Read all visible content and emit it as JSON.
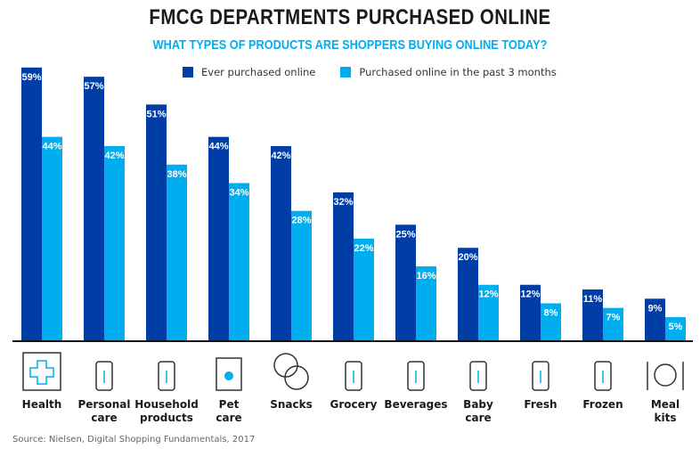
{
  "title": "FMCG DEPARTMENTS PURCHASED ONLINE",
  "subtitle": "WHAT TYPES OF PRODUCTS ARE SHOPPERS BUYING ONLINE TODAY?",
  "source": "Source: Nielsen, Digital Shopping Fundamentals, 2017",
  "chart_data": {
    "type": "bar",
    "title": "FMCG DEPARTMENTS PURCHASED ONLINE",
    "subtitle": "WHAT TYPES OF PRODUCTS ARE SHOPPERS BUYING ONLINE TODAY?",
    "categories": [
      "Health",
      "Personal care",
      "Household products",
      "Pet care",
      "Snacks",
      "Grocery",
      "Beverages",
      "Baby care",
      "Fresh",
      "Frozen",
      "Meal kits"
    ],
    "category_lines": [
      [
        "Health"
      ],
      [
        "Personal",
        "care"
      ],
      [
        "Household",
        "products"
      ],
      [
        "Pet",
        "care"
      ],
      [
        "Snacks"
      ],
      [
        "Grocery"
      ],
      [
        "Beverages"
      ],
      [
        "Baby",
        "care"
      ],
      [
        "Fresh"
      ],
      [
        "Frozen"
      ],
      [
        "Meal",
        "kits"
      ]
    ],
    "icons": [
      "health-cross-icon",
      "lipstick-icon",
      "detergent-bottle-icon",
      "pet-food-icon",
      "cookies-icon",
      "vegetables-icon",
      "soda-can-icon",
      "baby-bottle-icon",
      "fruit-icon",
      "frozen-bag-icon",
      "plate-cutlery-icon"
    ],
    "series": [
      {
        "name": "Ever purchased online",
        "color": "#003da5",
        "values": [
          59,
          57,
          51,
          44,
          42,
          32,
          25,
          20,
          12,
          11,
          9
        ]
      },
      {
        "name": "Purchased online in the past 3 months",
        "color": "#00aeef",
        "values": [
          44,
          42,
          38,
          34,
          28,
          22,
          16,
          12,
          8,
          7,
          5
        ]
      }
    ],
    "value_suffix": "%",
    "ylim": [
      0,
      60
    ],
    "grid": false,
    "legend": "top"
  }
}
